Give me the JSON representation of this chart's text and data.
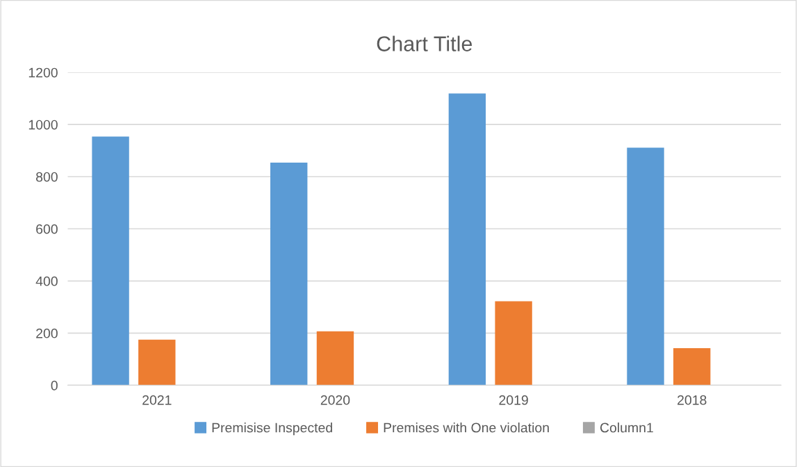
{
  "chart_data": {
    "type": "bar",
    "title": "Chart Title",
    "categories": [
      "2021",
      "2020",
      "2019",
      "2018"
    ],
    "series": [
      {
        "name": "Premisise Inspected",
        "color": "#5b9bd5",
        "values": [
          954,
          854,
          1119,
          911
        ]
      },
      {
        "name": "Premises with One violation",
        "color": "#ed7d31",
        "values": [
          175,
          207,
          322,
          142
        ]
      },
      {
        "name": "Column1",
        "color": "#a5a5a5",
        "values": [
          null,
          null,
          null,
          null
        ]
      }
    ],
    "ylim": [
      0,
      1200
    ],
    "yticks": [
      0,
      200,
      400,
      600,
      800,
      1000,
      1200
    ],
    "grid": "y",
    "legend": "bottom"
  }
}
